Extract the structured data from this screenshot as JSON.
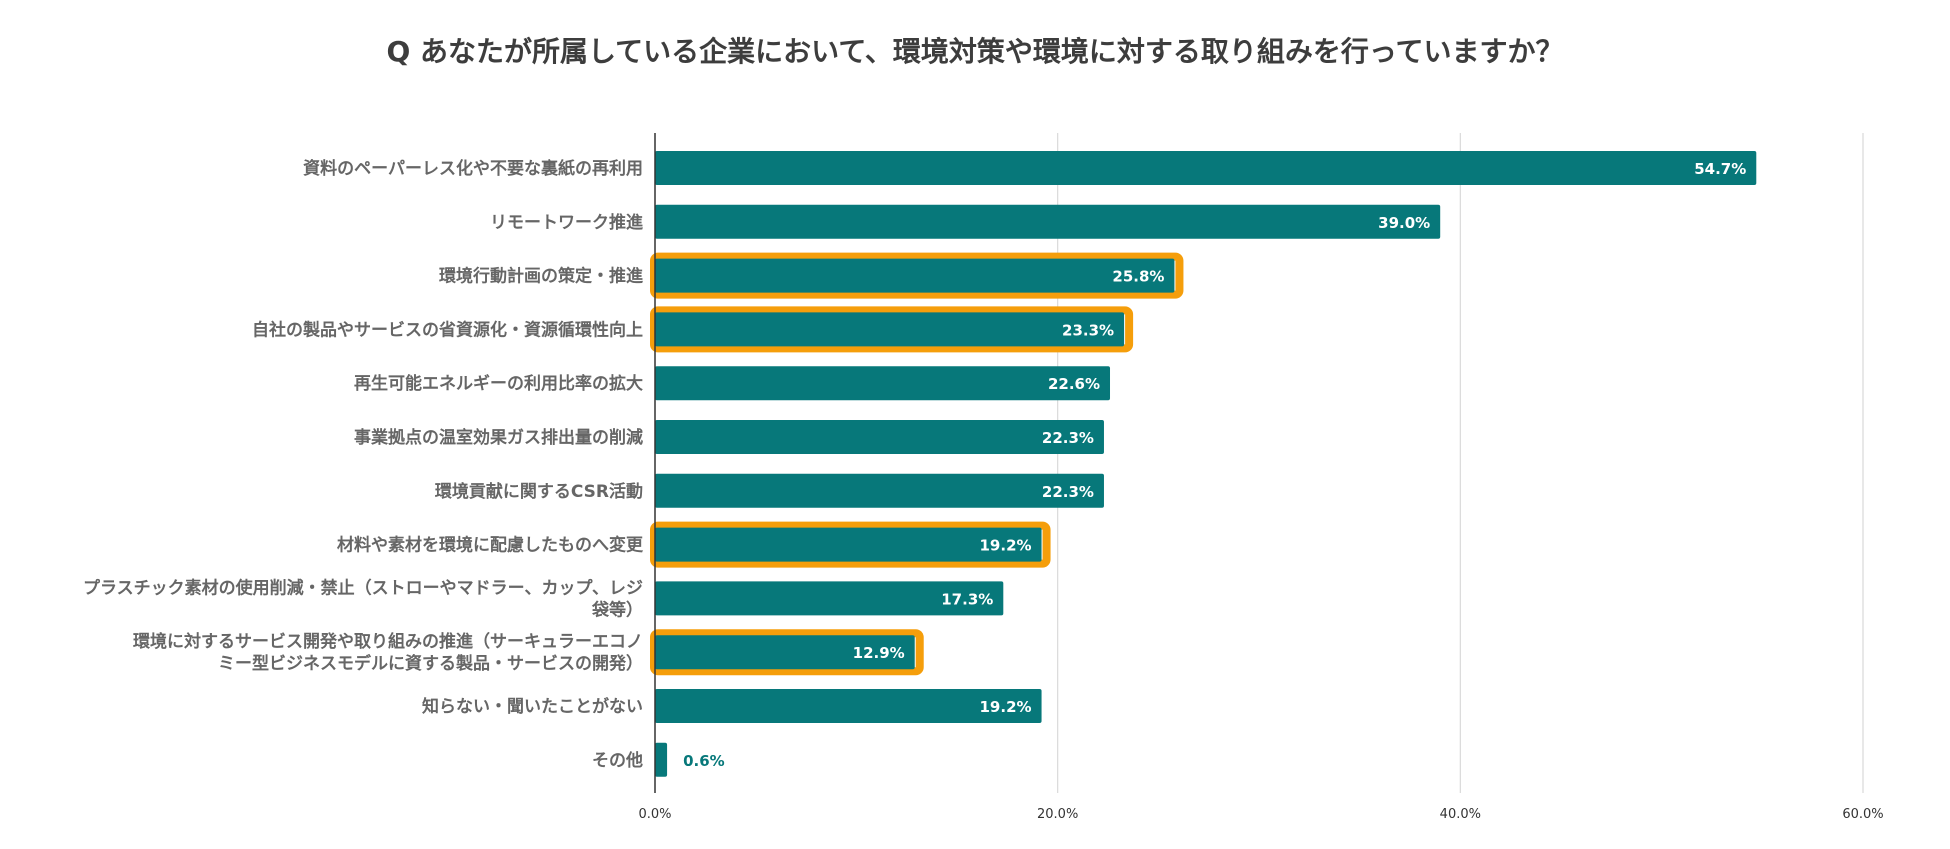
{
  "title": "Q あなたが所属している企業において、環境対策や環境に対する取り組みを行っていますか？",
  "colors": {
    "bar": "#07787a",
    "highlight": "#f59e0b",
    "grid": "#d9d9d9",
    "axis": "#333333",
    "value_outside": "#07787a",
    "value_inside": "#ffffff"
  },
  "chart_data": {
    "type": "bar",
    "orientation": "horizontal",
    "title": "Q あなたが所属している企業において、環境対策や環境に対する取り組みを行っていますか？",
    "categories": [
      [
        "資料のペーパーレス化や不要な裏紙の再利用"
      ],
      [
        "リモートワーク推進"
      ],
      [
        "環境行動計画の策定・推進"
      ],
      [
        "自社の製品やサービスの省資源化・資源循環性向上"
      ],
      [
        "再生可能エネルギーの利用比率の拡大"
      ],
      [
        "事業拠点の温室効果ガス排出量の削減"
      ],
      [
        "環境貢献に関するCSR活動"
      ],
      [
        "材料や素材を環境に配慮したものへ変更"
      ],
      [
        "プラスチック素材の使用削減・禁止（ストローやマドラー、カップ、レジ",
        "袋等）"
      ],
      [
        "環境に対するサービス開発や取り組みの推進（サーキュラーエコノ",
        "ミー型ビジネスモデルに資する製品・サービスの開発）"
      ],
      [
        "知らない・聞いたことがない"
      ],
      [
        "その他"
      ]
    ],
    "values": [
      54.7,
      39.0,
      25.8,
      23.3,
      22.6,
      22.3,
      22.3,
      19.2,
      17.3,
      12.9,
      19.2,
      0.6
    ],
    "value_labels": [
      "54.7%",
      "39.0%",
      "25.8%",
      "23.3%",
      "22.6%",
      "22.3%",
      "22.3%",
      "19.2%",
      "17.3%",
      "12.9%",
      "19.2%",
      "0.6%"
    ],
    "highlighted": [
      false,
      false,
      true,
      true,
      false,
      false,
      false,
      true,
      false,
      true,
      false,
      false
    ],
    "xlim": [
      0,
      60
    ],
    "xticks": [
      0,
      20,
      40,
      60
    ],
    "xtick_labels": [
      "0.0%",
      "20.0%",
      "40.0%",
      "60.0%"
    ],
    "grid": true,
    "xlabel": "",
    "ylabel": ""
  }
}
